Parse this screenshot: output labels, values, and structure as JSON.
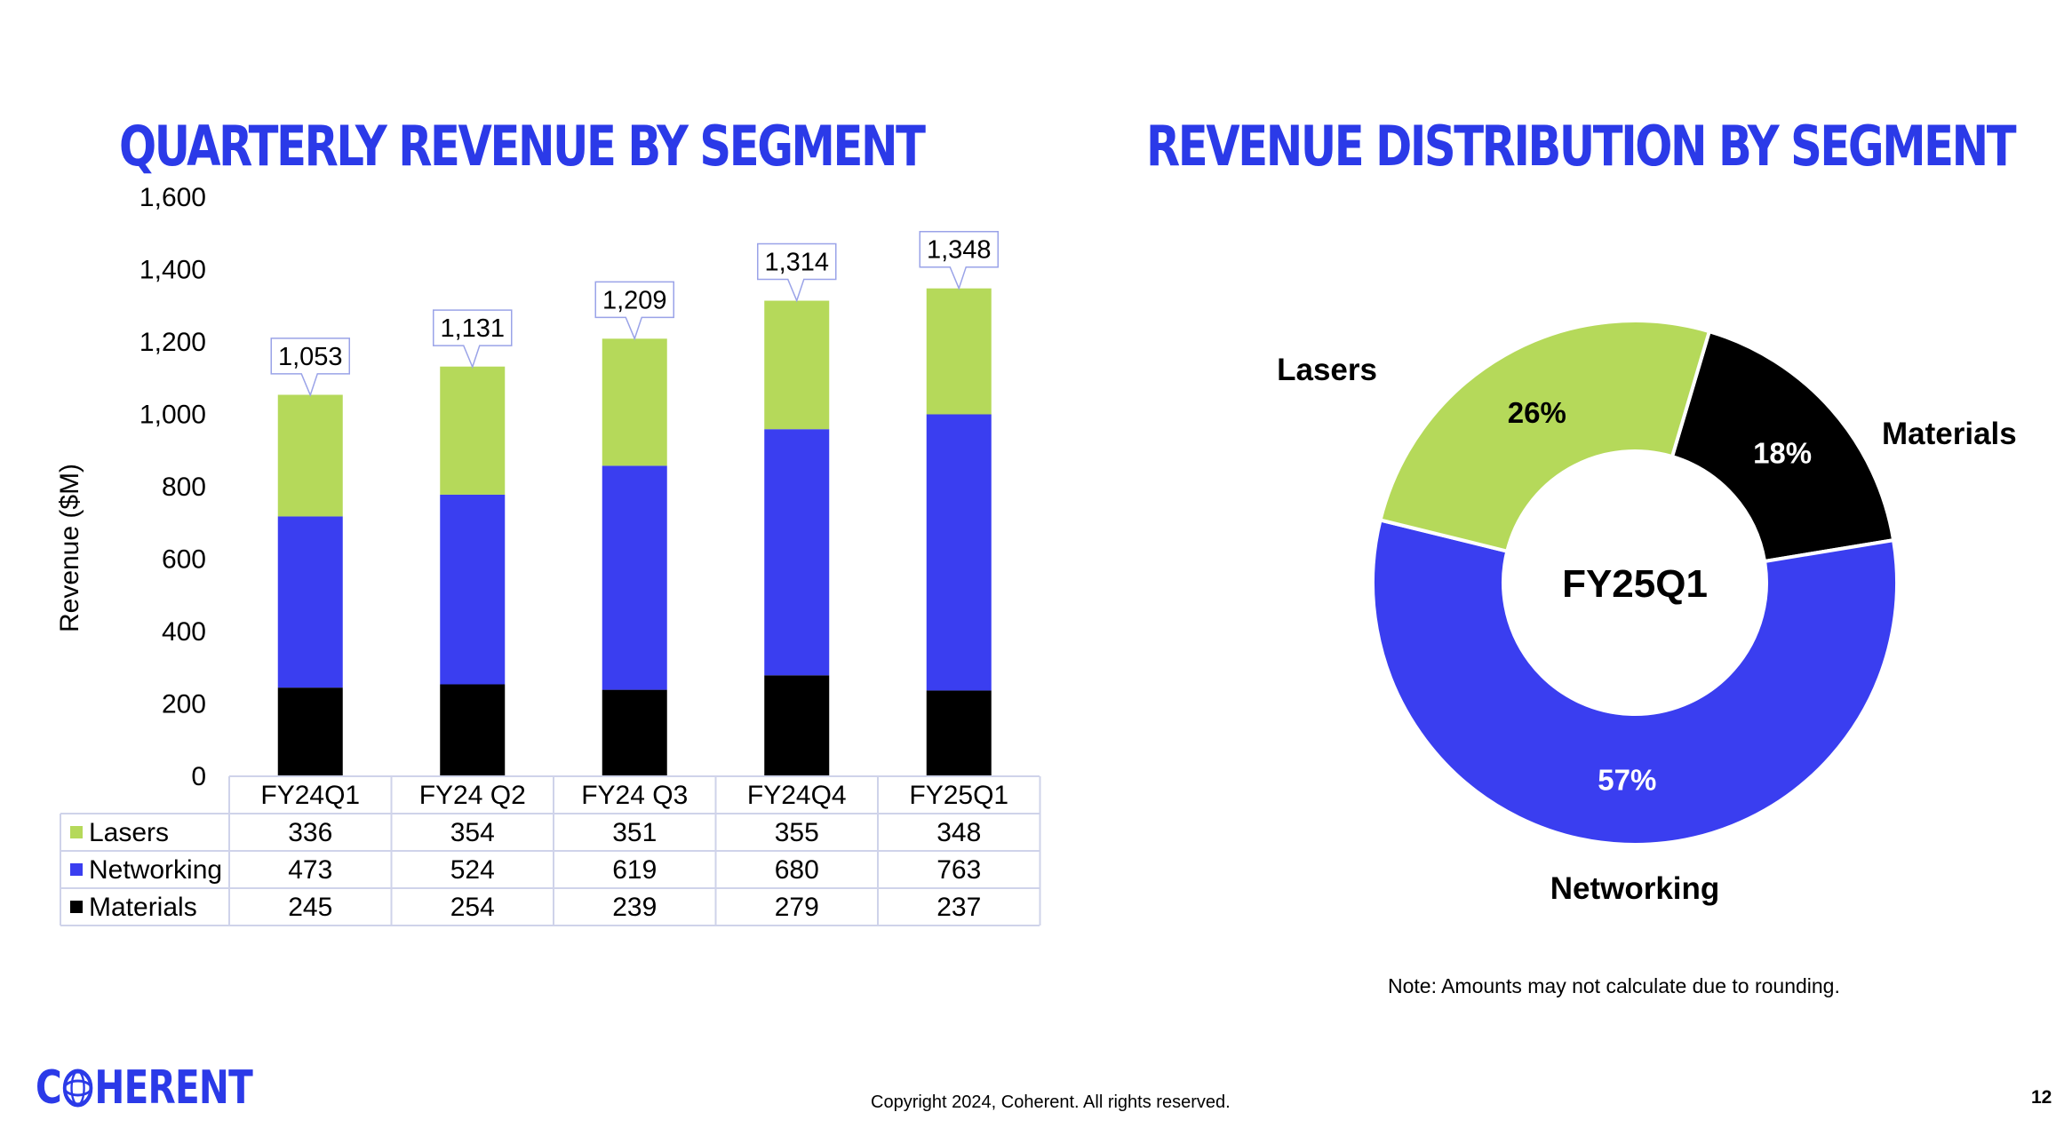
{
  "slide": {
    "left_title": "QUARTERLY REVENUE BY SEGMENT",
    "right_title": "REVENUE DISTRIBUTION BY SEGMENT",
    "note": "Note: Amounts may not calculate due to rounding.",
    "copyright": "Copyright 2024, Coherent. All rights reserved.",
    "page_number": "12",
    "logo": {
      "before": "C",
      "after": "HERENT",
      "full_text": "COHERENT"
    }
  },
  "colors": {
    "title": "#2b3ae8",
    "Lasers": "#b5d95a",
    "Networking": "#3a3ef0",
    "Materials": "#000000",
    "table_border": "#cfd3ea",
    "callout_border": "#9aa3e8"
  },
  "chart_data": [
    {
      "type": "bar",
      "stacked": true,
      "title": "QUARTERLY REVENUE BY SEGMENT",
      "ylabel": "Revenue ($M)",
      "xlabel": "",
      "ylim": [
        0,
        1600
      ],
      "yticks": [
        "0",
        "200",
        "400",
        "600",
        "800",
        "1,000",
        "1,200",
        "1,400",
        "1,600"
      ],
      "categories": [
        "FY24Q1",
        "FY24 Q2",
        "FY24 Q3",
        "FY24Q4",
        "FY25Q1"
      ],
      "series": [
        {
          "name": "Materials",
          "values": [
            245,
            254,
            239,
            279,
            237
          ]
        },
        {
          "name": "Networking",
          "values": [
            473,
            524,
            619,
            680,
            763
          ]
        },
        {
          "name": "Lasers",
          "values": [
            336,
            354,
            351,
            355,
            348
          ]
        }
      ],
      "totals": [
        1053,
        1131,
        1209,
        1314,
        1348
      ],
      "total_labels": [
        "1,053",
        "1,131",
        "1,209",
        "1,314",
        "1,348"
      ],
      "table_rows": [
        "Lasers",
        "Networking",
        "Materials"
      ],
      "grid": false,
      "legend": "data table below chart"
    },
    {
      "type": "pie",
      "donut": true,
      "title": "REVENUE DISTRIBUTION BY SEGMENT",
      "center_label": "FY25Q1",
      "slices": [
        {
          "name": "Lasers",
          "value": 26,
          "label": "26%"
        },
        {
          "name": "Materials",
          "value": 18,
          "label": "18%"
        },
        {
          "name": "Networking",
          "value": 57,
          "label": "57%"
        }
      ]
    }
  ]
}
